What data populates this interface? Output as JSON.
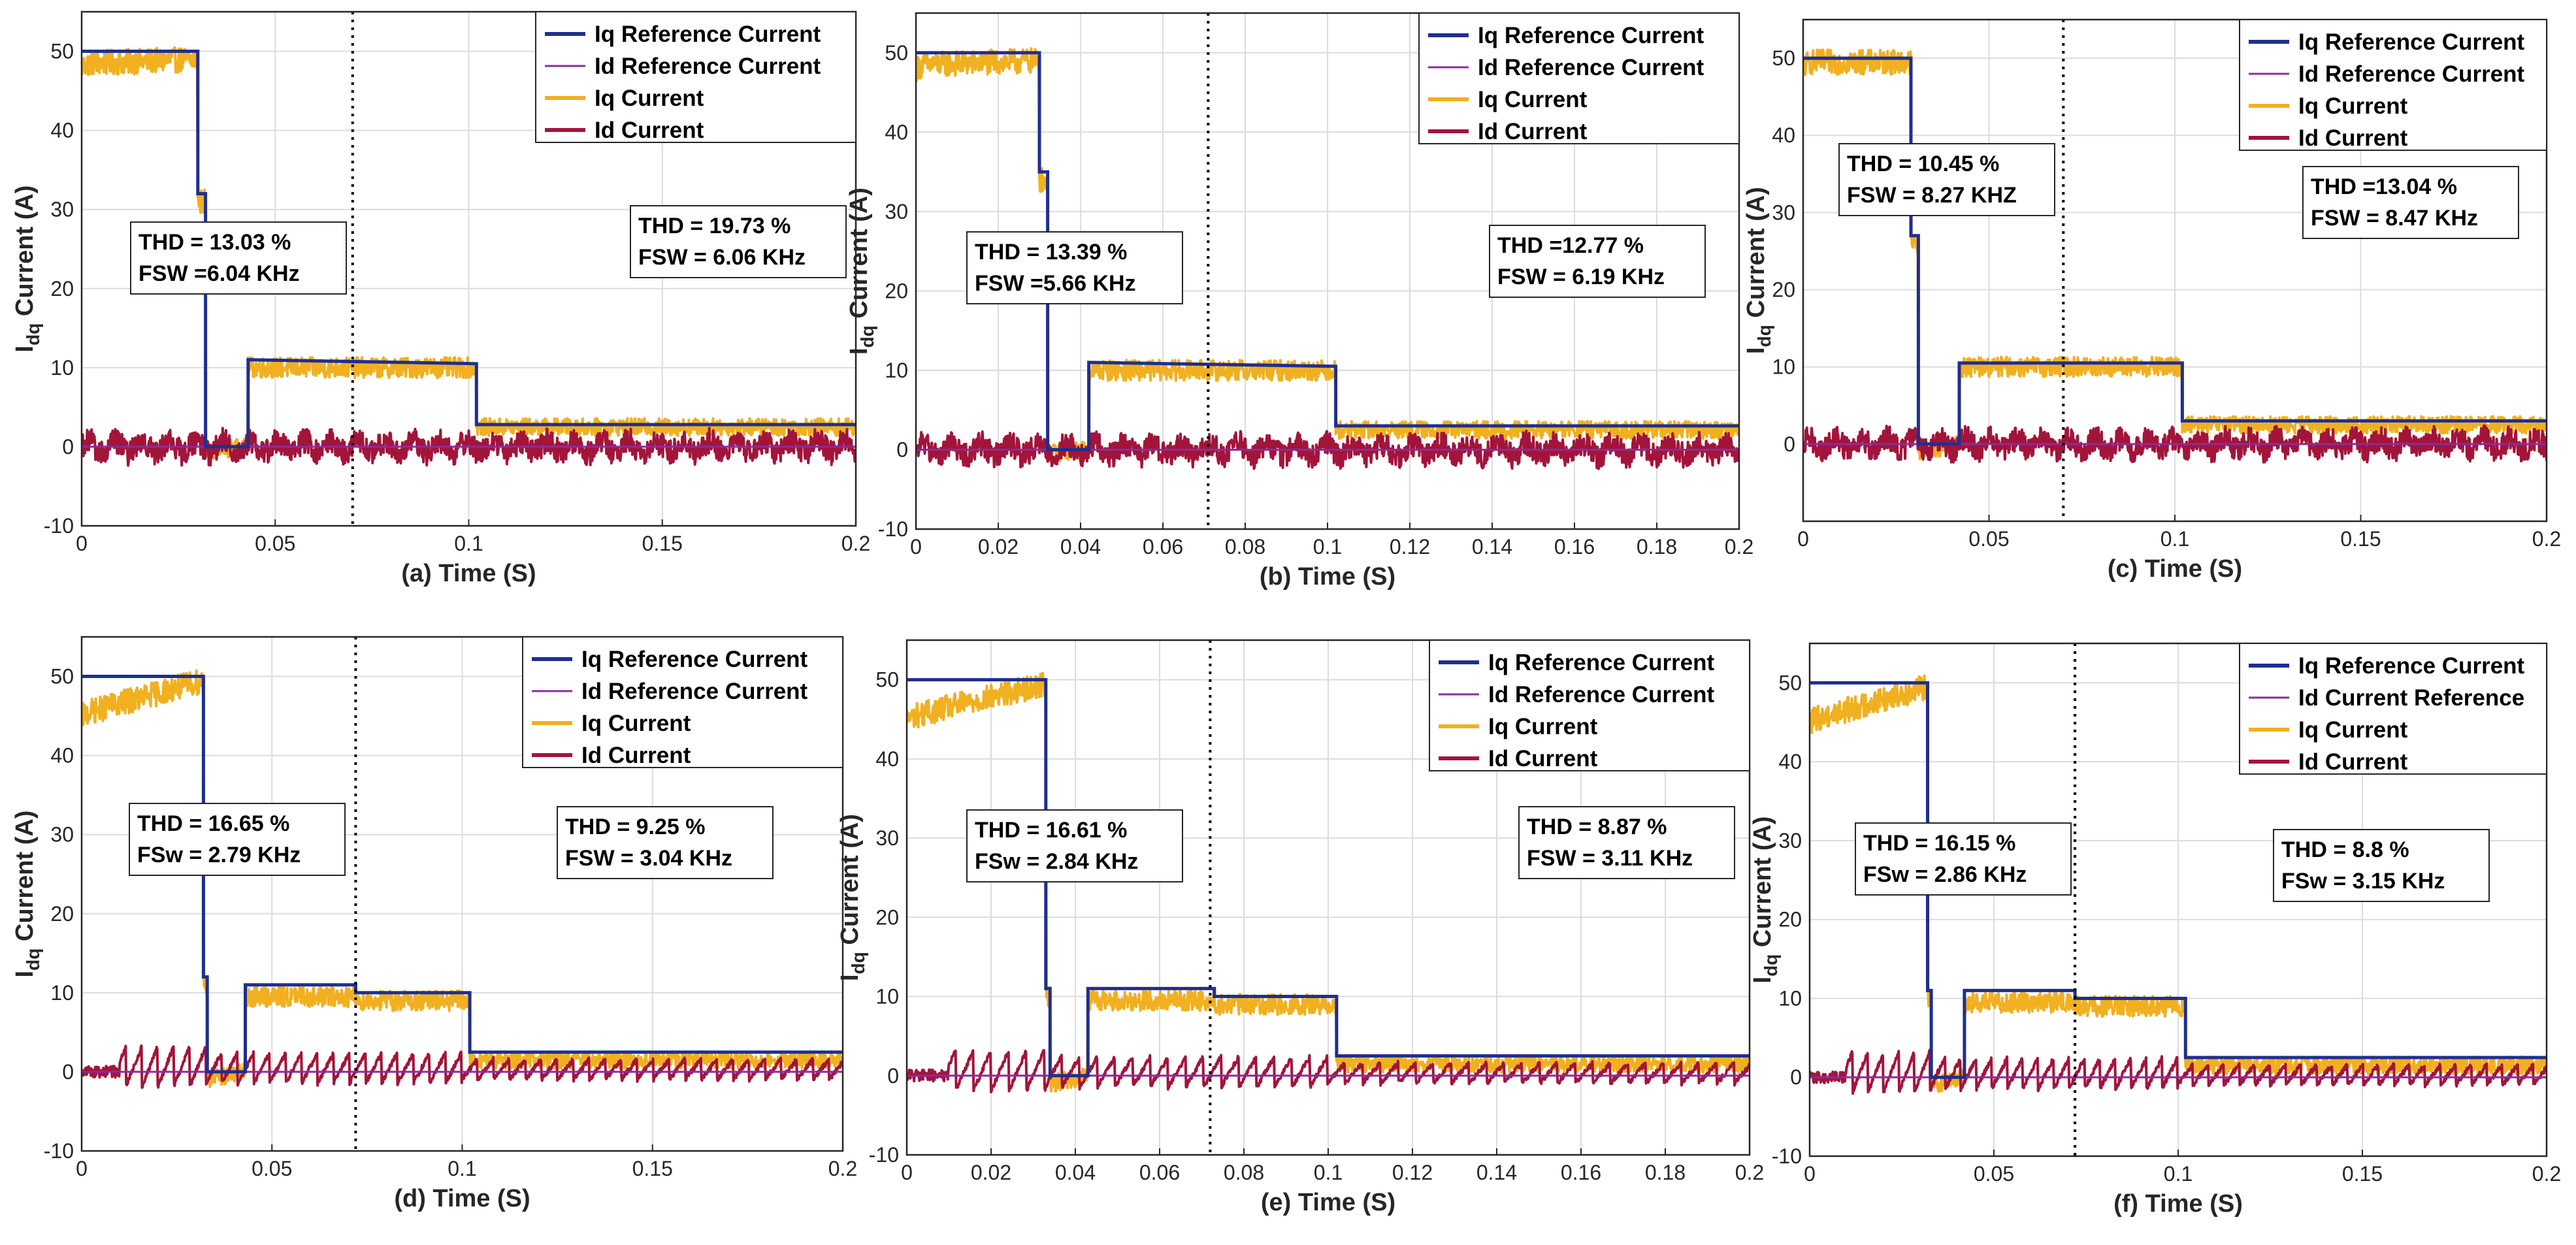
{
  "colors": {
    "iq_ref": "#1f2f8f",
    "id_ref": "#8a2c9c",
    "iq": "#f0b020",
    "id": "#a3143a"
  },
  "chart_data": [
    {
      "type": "line",
      "xlabel": "(a) Time (S)",
      "ylabel": "I_dq Current (A)",
      "xlim": [
        0,
        0.2
      ],
      "ylim": [
        -10,
        55
      ],
      "xticks": [
        "0",
        "0.05",
        "0.1",
        "0.15",
        "0.2"
      ],
      "xtick_values": [
        0,
        0.05,
        0.1,
        0.15,
        0.2
      ],
      "yticks": [
        "-10",
        "0",
        "10",
        "20",
        "30",
        "40",
        "50"
      ],
      "yticks_shown": true,
      "grid": true,
      "legend": "top-right",
      "divider_x": 0.07,
      "series": [
        {
          "name": "Iq Reference Current",
          "x": [
            0,
            0.03,
            0.03,
            0.032,
            0.032,
            0.043,
            0.043,
            0.102,
            0.102,
            0.2
          ],
          "values": [
            50,
            50,
            32,
            32,
            0,
            0,
            11,
            10.5,
            2.8,
            2.8
          ]
        },
        {
          "name": "Id Reference Current",
          "x": [
            0,
            0.2
          ],
          "values": [
            0,
            0
          ]
        },
        {
          "name": "Iq Current",
          "x": [
            0,
            0.002,
            0.03,
            0.03,
            0.032,
            0.032,
            0.043,
            0.043,
            0.102,
            0.102,
            0.2
          ],
          "values": [
            48,
            48.5,
            49,
            31,
            31,
            -0.5,
            0,
            10,
            10,
            2.5,
            2.5
          ]
        },
        {
          "name": "Id Current",
          "x": [
            0,
            0.2
          ],
          "values": [
            0,
            0
          ]
        }
      ],
      "annotations": [
        {
          "lines": [
            "THD = 13.03 %",
            "FSW =6.04 KHz"
          ]
        },
        {
          "lines": [
            "THD = 19.73 %",
            "FSW = 6.06 KHz"
          ]
        }
      ]
    },
    {
      "type": "line",
      "xlabel": "(b) Time (S)",
      "ylabel": "I_dq Current (A)",
      "xlim": [
        0,
        0.2
      ],
      "ylim": [
        -10,
        55
      ],
      "xticks": [
        "0",
        "0.02",
        "0.04",
        "0.06",
        "0.08",
        "0.1",
        "0.12",
        "0.14",
        "0.16",
        "0.18",
        "0.2"
      ],
      "xtick_values": [
        0,
        0.02,
        0.04,
        0.06,
        0.08,
        0.1,
        0.12,
        0.14,
        0.16,
        0.18,
        0.2
      ],
      "yticks": [
        "-10",
        "0",
        "10",
        "20",
        "30",
        "40",
        "50"
      ],
      "yticks_shown": true,
      "grid": true,
      "legend": "top-right",
      "divider_x": 0.071,
      "series": [
        {
          "name": "Iq Reference Current",
          "x": [
            0,
            0.03,
            0.03,
            0.032,
            0.032,
            0.042,
            0.042,
            0.102,
            0.102,
            0.2
          ],
          "values": [
            50,
            50,
            35,
            35,
            0,
            0,
            11,
            10.5,
            3,
            3
          ]
        },
        {
          "name": "Id Reference Current",
          "x": [
            0,
            0.2
          ],
          "values": [
            0,
            0
          ]
        },
        {
          "name": "Iq Current",
          "x": [
            0,
            0.002,
            0.03,
            0.03,
            0.032,
            0.032,
            0.042,
            0.042,
            0.102,
            0.102,
            0.2
          ],
          "values": [
            48,
            48.5,
            49,
            34,
            34,
            -0.5,
            0,
            10,
            10,
            2.5,
            2.5
          ]
        },
        {
          "name": "Id Current",
          "x": [
            0,
            0.2
          ],
          "values": [
            0,
            0
          ]
        }
      ],
      "annotations": [
        {
          "lines": [
            "THD = 13.39 %",
            "FSW =5.66 KHz"
          ]
        },
        {
          "lines": [
            "THD =12.77 %",
            "FSW = 6.19 KHz"
          ]
        }
      ]
    },
    {
      "type": "line",
      "xlabel": "(c) Time (S)",
      "ylabel": "I_dq Current (A)",
      "xlim": [
        0,
        0.2
      ],
      "ylim": [
        -10,
        55
      ],
      "xticks": [
        "0",
        "0.05",
        "0.1",
        "0.15",
        "0.2"
      ],
      "xtick_values": [
        0,
        0.05,
        0.1,
        0.15,
        0.2
      ],
      "yticks": [
        "0",
        "10",
        "20",
        "30",
        "40",
        "50"
      ],
      "yticks_shown": true,
      "grid": true,
      "legend": "top-right",
      "divider_x": 0.07,
      "series": [
        {
          "name": "Iq Reference Current",
          "x": [
            0,
            0.029,
            0.029,
            0.031,
            0.031,
            0.042,
            0.042,
            0.102,
            0.102,
            0.2
          ],
          "values": [
            50,
            50,
            27,
            27,
            0,
            0,
            10.5,
            10.5,
            3,
            3
          ]
        },
        {
          "name": "Id Reference Current",
          "x": [
            0,
            0.2
          ],
          "values": [
            0,
            0
          ]
        },
        {
          "name": "Iq Current",
          "x": [
            0,
            0.002,
            0.029,
            0.029,
            0.031,
            0.031,
            0.042,
            0.042,
            0.102,
            0.102,
            0.2
          ],
          "values": [
            49,
            49.5,
            49.5,
            26,
            26,
            -1,
            0,
            10,
            10,
            2.5,
            2.5
          ]
        },
        {
          "name": "Id Current",
          "x": [
            0,
            0.2
          ],
          "values": [
            0,
            0
          ]
        }
      ],
      "annotations": [
        {
          "lines": [
            "THD = 10.45 %",
            "FSW = 8.27 KHZ"
          ]
        },
        {
          "lines": [
            "THD =13.04 %",
            "FSW = 8.47 KHz"
          ]
        }
      ]
    },
    {
      "type": "line",
      "xlabel": "(d) Time (S)",
      "ylabel": "I_dq Current (A)",
      "xlim": [
        0,
        0.2
      ],
      "ylim": [
        -10,
        55
      ],
      "xticks": [
        "0",
        "0.05",
        "0.1",
        "0.15",
        "0.2"
      ],
      "xtick_values": [
        0,
        0.05,
        0.1,
        0.15,
        0.2
      ],
      "yticks": [
        "-10",
        "0",
        "10",
        "20",
        "30",
        "40",
        "50"
      ],
      "yticks_shown": true,
      "grid": true,
      "legend": "top-right",
      "divider_x": 0.072,
      "series": [
        {
          "name": "Iq Reference Current",
          "x": [
            0,
            0.032,
            0.032,
            0.033,
            0.033,
            0.043,
            0.043,
            0.072,
            0.072,
            0.102,
            0.102,
            0.2
          ],
          "values": [
            50,
            50,
            12,
            12,
            0,
            0,
            11,
            11,
            10,
            10,
            2.5,
            2.5
          ]
        },
        {
          "name": "Id Reference Current",
          "x": [
            0,
            0.2
          ],
          "values": [
            0,
            0
          ]
        },
        {
          "name": "Iq Current",
          "x": [
            0,
            0.002,
            0.032,
            0.032,
            0.033,
            0.033,
            0.043,
            0.043,
            0.072,
            0.072,
            0.102,
            0.102,
            0.2
          ],
          "values": [
            45,
            45.5,
            49.5,
            11,
            11,
            -1,
            0,
            9.5,
            9.5,
            9,
            9,
            1.5,
            1.5
          ]
        },
        {
          "name": "Id Current",
          "x": [
            0,
            0.2
          ],
          "values": [
            0,
            0
          ]
        }
      ],
      "annotations": [
        {
          "lines": [
            "THD = 16.65 %",
            "FSw = 2.79 KHz"
          ]
        },
        {
          "lines": [
            "THD = 9.25 %",
            "FSW = 3.04 KHz"
          ]
        }
      ]
    },
    {
      "type": "line",
      "xlabel": "(e) Time (S)",
      "ylabel": "I_dq Current (A)",
      "xlim": [
        0,
        0.2
      ],
      "ylim": [
        -10,
        55
      ],
      "xticks": [
        "0",
        "0.02",
        "0.04",
        "0.06",
        "0.08",
        "0.1",
        "0.12",
        "0.14",
        "0.16",
        "0.18",
        "0.2"
      ],
      "xtick_values": [
        0,
        0.02,
        0.04,
        0.06,
        0.08,
        0.1,
        0.12,
        0.14,
        0.16,
        0.18,
        0.2
      ],
      "yticks": [
        "-10",
        "0",
        "10",
        "20",
        "30",
        "40",
        "50"
      ],
      "yticks_shown": true,
      "grid": true,
      "legend": "top-right",
      "divider_x": 0.072,
      "series": [
        {
          "name": "Iq Reference Current",
          "x": [
            0,
            0.033,
            0.033,
            0.034,
            0.034,
            0.043,
            0.043,
            0.073,
            0.073,
            0.102,
            0.102,
            0.2
          ],
          "values": [
            50,
            50,
            11,
            11,
            0,
            0,
            11,
            11,
            10,
            10,
            2.5,
            2.5
          ]
        },
        {
          "name": "Id Reference Current",
          "x": [
            0,
            0.2
          ],
          "values": [
            0,
            0
          ]
        },
        {
          "name": "Iq Current",
          "x": [
            0,
            0.002,
            0.033,
            0.033,
            0.034,
            0.034,
            0.043,
            0.043,
            0.073,
            0.073,
            0.102,
            0.102,
            0.2
          ],
          "values": [
            45,
            45.5,
            49.5,
            10,
            10,
            -1,
            0,
            9.5,
            9.5,
            9,
            9,
            1.5,
            1.5
          ]
        },
        {
          "name": "Id Current",
          "x": [
            0,
            0.2
          ],
          "values": [
            0,
            0
          ]
        }
      ],
      "annotations": [
        {
          "lines": [
            "THD = 16.61 %",
            "FSw = 2.84 KHz"
          ]
        },
        {
          "lines": [
            "THD = 8.87 %",
            "FSW = 3.11 KHz"
          ]
        }
      ]
    },
    {
      "type": "line",
      "xlabel": "(f) Time (S)",
      "ylabel": "I_dq Current (A)",
      "xlim": [
        0,
        0.2
      ],
      "ylim": [
        -10,
        55
      ],
      "xticks": [
        "0",
        "0.05",
        "0.1",
        "0.15",
        "0.2"
      ],
      "xtick_values": [
        0,
        0.05,
        0.1,
        0.15,
        0.2
      ],
      "yticks": [
        "-10",
        "0",
        "10",
        "20",
        "30",
        "40",
        "50"
      ],
      "yticks_shown": true,
      "grid": true,
      "legend": "top-right",
      "divider_x": 0.072,
      "series": [
        {
          "name": "Iq Reference Current",
          "x": [
            0,
            0.032,
            0.032,
            0.033,
            0.033,
            0.042,
            0.042,
            0.072,
            0.072,
            0.102,
            0.102,
            0.2
          ],
          "values": [
            50,
            50,
            11,
            11,
            0,
            0,
            11,
            11,
            10,
            10,
            2.5,
            2.5
          ]
        },
        {
          "name": "Id Current Reference",
          "x": [
            0,
            0.2
          ],
          "values": [
            0,
            0
          ]
        },
        {
          "name": "Iq Current",
          "x": [
            0,
            0.002,
            0.032,
            0.032,
            0.033,
            0.033,
            0.042,
            0.042,
            0.072,
            0.072,
            0.102,
            0.102,
            0.2
          ],
          "values": [
            45,
            45.5,
            49.5,
            10,
            10,
            -1,
            0,
            9.5,
            9.5,
            9,
            9,
            1.5,
            1.5
          ]
        },
        {
          "name": "Id Current",
          "x": [
            0,
            0.2
          ],
          "values": [
            0,
            0
          ]
        }
      ],
      "annotations": [
        {
          "lines": [
            "THD = 16.15 %",
            "FSw = 2.86 KHz"
          ]
        },
        {
          "lines": [
            "THD = 8.8 %",
            "FSw = 3.15 KHz"
          ]
        }
      ]
    }
  ]
}
